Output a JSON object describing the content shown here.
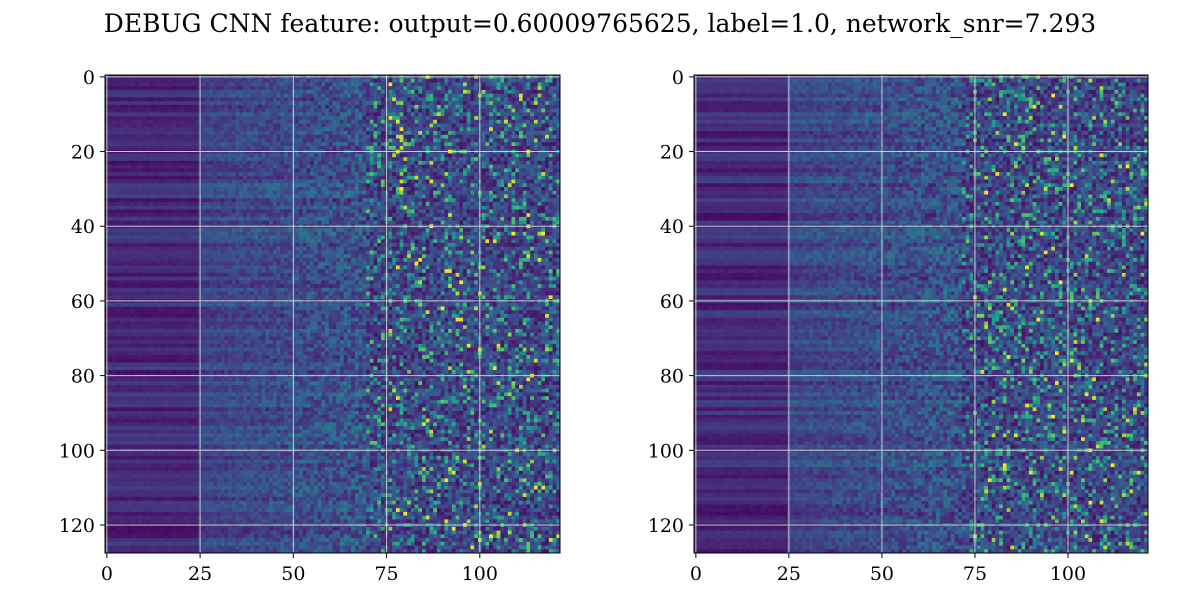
{
  "figure": {
    "title": "DEBUG CNN feature: output=0.60009765625, label=1.0, network_snr=7.293"
  },
  "colormap": {
    "name": "viridis",
    "stops": [
      "#440154",
      "#482878",
      "#3e4989",
      "#31688e",
      "#26828e",
      "#1f9e89",
      "#35b779",
      "#6ece58",
      "#b5de2b",
      "#fde725"
    ]
  },
  "chart_data": [
    {
      "type": "heatmap",
      "rows": 128,
      "cols": 122,
      "x_ticks": [
        0,
        25,
        50,
        75,
        100
      ],
      "y_ticks": [
        0,
        20,
        40,
        60,
        80,
        100,
        120
      ],
      "xlim": [
        -0.5,
        121.5
      ],
      "ylim": [
        127.5,
        -0.5
      ],
      "grid": true,
      "value_range": [
        0,
        1
      ],
      "texture": {
        "low_region_end_col": 25,
        "ramp_end_col": 70,
        "dense_bright_from_col": 75,
        "seed": 11
      }
    },
    {
      "type": "heatmap",
      "rows": 128,
      "cols": 122,
      "x_ticks": [
        0,
        25,
        50,
        75,
        100
      ],
      "y_ticks": [
        0,
        20,
        40,
        60,
        80,
        100,
        120
      ],
      "xlim": [
        -0.5,
        121.5
      ],
      "ylim": [
        127.5,
        -0.5
      ],
      "grid": true,
      "value_range": [
        0,
        1
      ],
      "texture": {
        "low_region_end_col": 25,
        "ramp_end_col": 72,
        "dense_bright_from_col": 75,
        "seed": 29
      }
    }
  ]
}
